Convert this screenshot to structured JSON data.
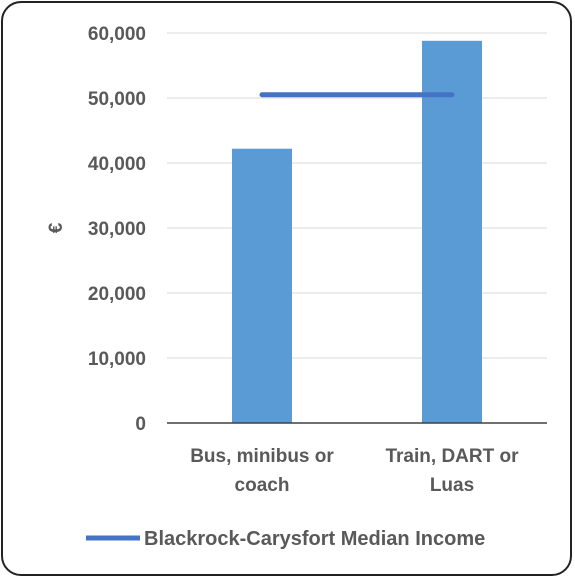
{
  "chart_data": {
    "type": "bar",
    "categories": [
      "Bus, minibus or coach",
      "Train, DART or Luas"
    ],
    "category_lines": [
      [
        "Bus, minibus or",
        "coach"
      ],
      [
        "Train, DART or",
        "Luas"
      ]
    ],
    "values": [
      42200,
      58800
    ],
    "ylabel": "€",
    "ylim": [
      0,
      60000
    ],
    "yticks": [
      0,
      10000,
      20000,
      30000,
      40000,
      50000,
      60000
    ],
    "ytick_labels": [
      "0",
      "10,000",
      "20,000",
      "30,000",
      "40,000",
      "50,000",
      "60,000"
    ],
    "reference_line": {
      "name": "Blackrock-Carysfort Median Income",
      "value": 50500
    },
    "legend": {
      "position": "bottom",
      "entries": [
        "Blackrock-Carysfort Median Income"
      ]
    },
    "grid": true,
    "colors": {
      "bar": "#5b9bd5",
      "line": "#4472c4",
      "grid": "#d9d9d9",
      "axis": "#404040",
      "text": "#595959"
    }
  }
}
